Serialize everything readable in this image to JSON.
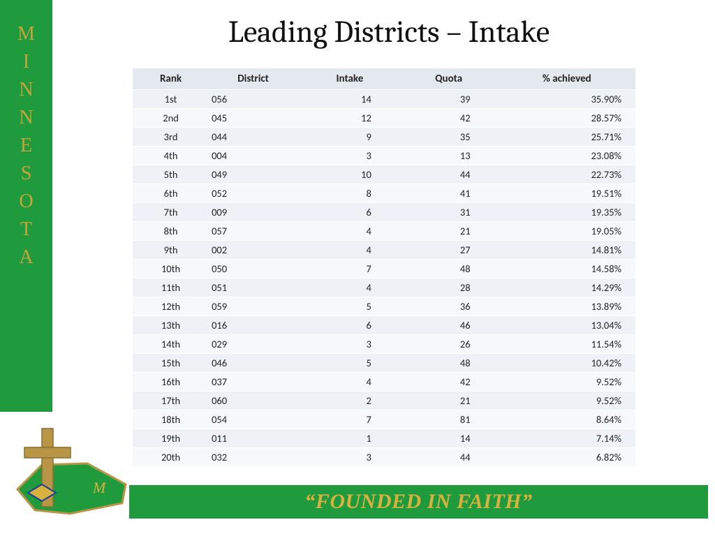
{
  "sidebar": {
    "letters": [
      "M",
      "I",
      "N",
      "N",
      "E",
      "S",
      "O",
      "T",
      "A"
    ],
    "bg_color": "#1f9a3d",
    "text_color": "#c6a43a"
  },
  "title": "Leading Districts – Intake",
  "table": {
    "columns": [
      "Rank",
      "District",
      "Intake",
      "Quota",
      "% achieved"
    ],
    "header_bg": "#e3e9ef",
    "row_bg_odd": "#eef1f5",
    "row_bg_even": "#f6f8fa",
    "rows": [
      {
        "rank": "1st",
        "district": "056",
        "intake": "14",
        "quota": "39",
        "pct": "35.90%"
      },
      {
        "rank": "2nd",
        "district": "045",
        "intake": "12",
        "quota": "42",
        "pct": "28.57%"
      },
      {
        "rank": "3rd",
        "district": "044",
        "intake": "9",
        "quota": "35",
        "pct": "25.71%"
      },
      {
        "rank": "4th",
        "district": "004",
        "intake": "3",
        "quota": "13",
        "pct": "23.08%"
      },
      {
        "rank": "5th",
        "district": "049",
        "intake": "10",
        "quota": "44",
        "pct": "22.73%"
      },
      {
        "rank": "6th",
        "district": "052",
        "intake": "8",
        "quota": "41",
        "pct": "19.51%"
      },
      {
        "rank": "7th",
        "district": "009",
        "intake": "6",
        "quota": "31",
        "pct": "19.35%"
      },
      {
        "rank": "8th",
        "district": "057",
        "intake": "4",
        "quota": "21",
        "pct": "19.05%"
      },
      {
        "rank": "9th",
        "district": "002",
        "intake": "4",
        "quota": "27",
        "pct": "14.81%"
      },
      {
        "rank": "10th",
        "district": "050",
        "intake": "7",
        "quota": "48",
        "pct": "14.58%"
      },
      {
        "rank": "11th",
        "district": "051",
        "intake": "4",
        "quota": "28",
        "pct": "14.29%"
      },
      {
        "rank": "12th",
        "district": "059",
        "intake": "5",
        "quota": "36",
        "pct": "13.89%"
      },
      {
        "rank": "13th",
        "district": "016",
        "intake": "6",
        "quota": "46",
        "pct": "13.04%"
      },
      {
        "rank": "14th",
        "district": "029",
        "intake": "3",
        "quota": "26",
        "pct": "11.54%"
      },
      {
        "rank": "15th",
        "district": "046",
        "intake": "5",
        "quota": "48",
        "pct": "10.42%"
      },
      {
        "rank": "16th",
        "district": "037",
        "intake": "4",
        "quota": "42",
        "pct": "9.52%"
      },
      {
        "rank": "17th",
        "district": "060",
        "intake": "2",
        "quota": "21",
        "pct": "9.52%"
      },
      {
        "rank": "18th",
        "district": "054",
        "intake": "7",
        "quota": "81",
        "pct": "8.64%"
      },
      {
        "rank": "19th",
        "district": "011",
        "intake": "1",
        "quota": "14",
        "pct": "7.14%"
      },
      {
        "rank": "20th",
        "district": "032",
        "intake": "3",
        "quota": "44",
        "pct": "6.82%"
      }
    ]
  },
  "footer": {
    "text": "“FOUNDED IN FAITH”",
    "bg_color": "#1f9a3d",
    "text_color": "#d9b23e"
  },
  "logo": {
    "cross_color": "#b99646",
    "shape_color": "#1f9a3d",
    "accent_color": "#d9b23e"
  }
}
